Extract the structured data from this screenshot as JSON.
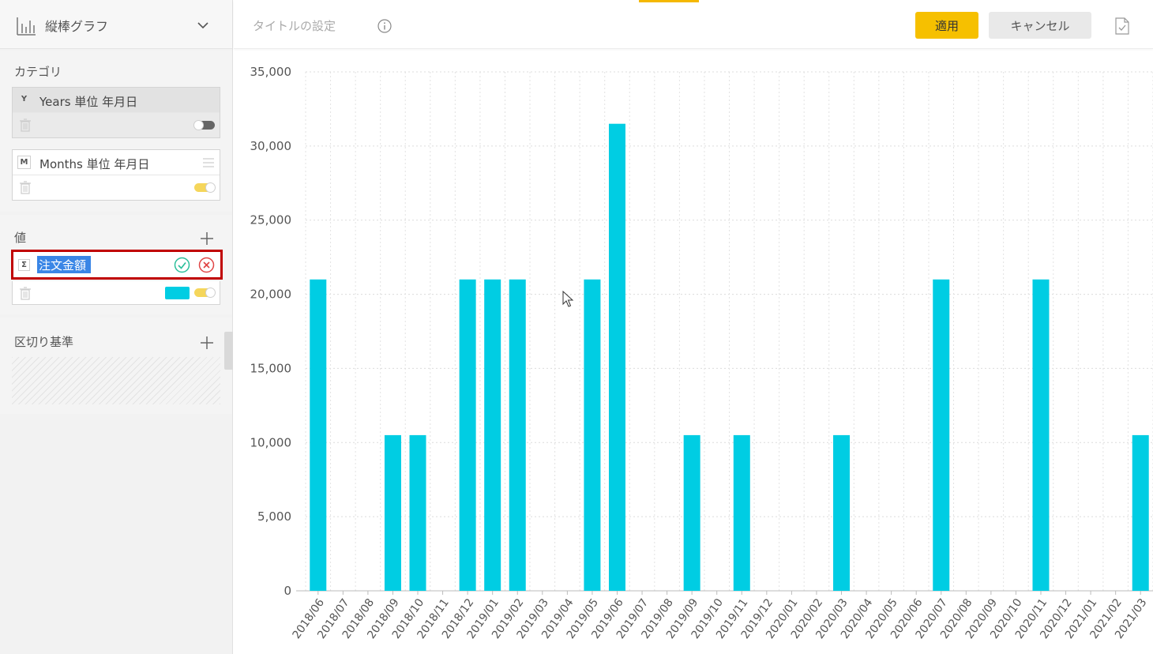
{
  "sidebar": {
    "chart_type": {
      "label": "縦棒グラフ",
      "icon": "bar-chart-icon"
    },
    "category": {
      "label": "カテゴリ",
      "fields": [
        {
          "badge": "Y",
          "label": "Years 単位 年月日",
          "toggle": "off"
        },
        {
          "badge": "M",
          "label": "Months 単位 年月日",
          "toggle": "on"
        }
      ]
    },
    "values": {
      "label": "値",
      "field": {
        "badge": "Σ",
        "name": "注文金額",
        "color": "#00cde3",
        "toggle": "on"
      }
    },
    "divider": {
      "label": "区切り基準"
    }
  },
  "toolbar": {
    "title_placeholder": "タイトルの設定",
    "apply_label": "適用",
    "cancel_label": "キャンセル"
  },
  "colors": {
    "bar": "#00cde3",
    "accent": "#f6c000",
    "edit_border": "#c00000"
  },
  "chart_data": {
    "type": "bar",
    "categories": [
      "2018/06",
      "2018/07",
      "2018/08",
      "2018/09",
      "2018/10",
      "2018/11",
      "2018/12",
      "2019/01",
      "2019/02",
      "2019/03",
      "2019/04",
      "2019/05",
      "2019/06",
      "2019/07",
      "2019/08",
      "2019/09",
      "2019/10",
      "2019/11",
      "2019/12",
      "2020/01",
      "2020/02",
      "2020/03",
      "2020/04",
      "2020/05",
      "2020/06",
      "2020/07",
      "2020/08",
      "2020/09",
      "2020/10",
      "2020/11",
      "2020/12",
      "2021/01",
      "2021/02",
      "2021/03"
    ],
    "values": [
      21000,
      0,
      0,
      10500,
      10500,
      0,
      21000,
      21000,
      21000,
      0,
      0,
      21000,
      31500,
      0,
      0,
      10500,
      0,
      10500,
      0,
      0,
      0,
      10500,
      0,
      0,
      0,
      21000,
      0,
      0,
      0,
      21000,
      0,
      0,
      0,
      10500
    ],
    "yticks": [
      "0",
      "5,000",
      "10,000",
      "15,000",
      "20,000",
      "25,000",
      "30,000",
      "35,000"
    ],
    "ylim": [
      0,
      35000
    ],
    "grid": true
  }
}
